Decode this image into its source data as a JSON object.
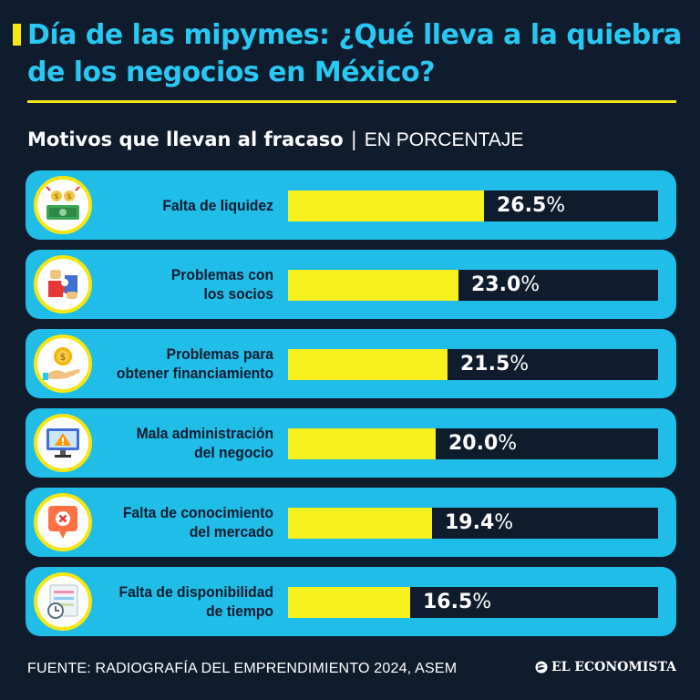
{
  "header": {
    "title": "Día de las mipymes: ¿Qué lleva a la quiebra de los negocios en México?",
    "subtitle_main": "Motivos que llevan al fracaso",
    "subtitle_sep": "|",
    "subtitle_unit": "EN PORCENTAJE"
  },
  "colors": {
    "background": "#0f1c2e",
    "title": "#29c8f2",
    "accent_yellow": "#f5e614",
    "row_bg": "#1fbde8",
    "bar_fill": "#f5f01e",
    "bar_track": "#0f1c2e"
  },
  "chart_data": {
    "type": "bar",
    "orientation": "horizontal",
    "categories": [
      "Falta de liquidez",
      "Problemas con los socios",
      "Problemas para obtener financiamiento",
      "Mala administración del negocio",
      "Falta de conocimiento del mercado",
      "Falta de disponibilidad de tiempo"
    ],
    "category_lines": [
      "Falta de liquidez",
      "Problemas con\nlos socios",
      "Problemas para\nobtener financiamiento",
      "Mala administración\ndel negocio",
      "Falta de conocimiento\ndel mercado",
      "Falta de disponibilidad\nde tiempo"
    ],
    "values": [
      26.5,
      23.0,
      21.5,
      20.0,
      19.4,
      16.5
    ],
    "value_labels": [
      "26.5",
      "23.0",
      "21.5",
      "20.0",
      "19.4",
      "16.5"
    ],
    "unit_suffix": "%",
    "icons": [
      "money-icon",
      "puzzle-handshake-icon",
      "coin-hand-icon",
      "warning-monitor-icon",
      "error-chat-icon",
      "clock-schedule-icon"
    ],
    "xlim": [
      0,
      50
    ],
    "grid": false,
    "legend": "none"
  },
  "footer": {
    "source": "FUENTE: RADIOGRAFÍA DEL EMPRENDIMIENTO 2024, ASEM",
    "logo_text": "EL ECONOMISTA"
  }
}
